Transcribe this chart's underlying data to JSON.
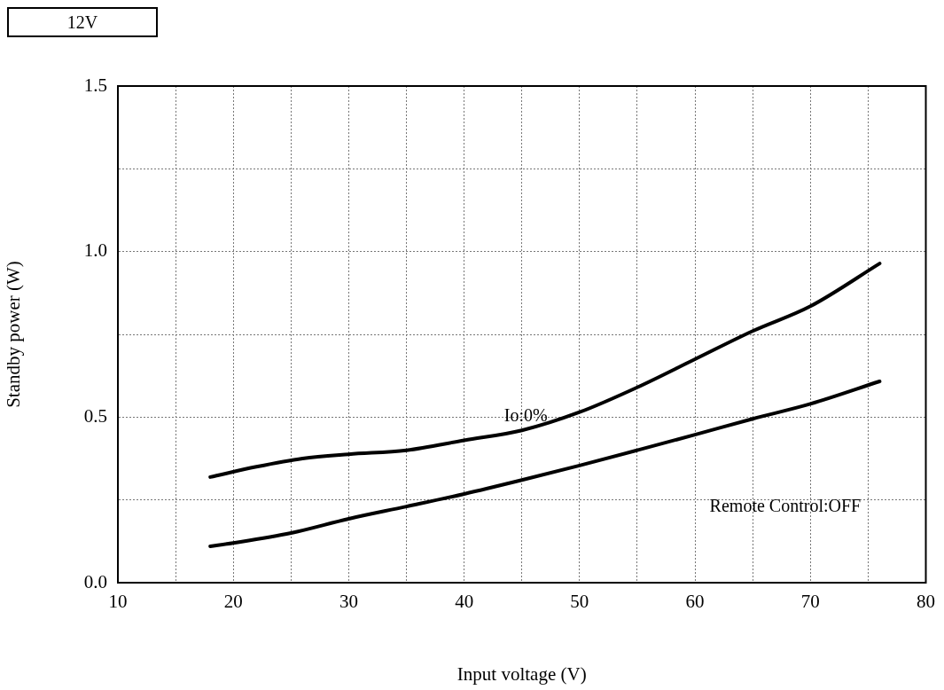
{
  "chart_data": {
    "type": "line",
    "title": "12V",
    "xlabel": "Input voltage (V)",
    "ylabel": "Standby power (W)",
    "xlim": [
      10,
      80
    ],
    "xticks": [
      10,
      {
        "value": 15,
        "label": null
      },
      20,
      {
        "value": 25,
        "label": null
      },
      30,
      {
        "value": 35,
        "label": null
      },
      40,
      {
        "value": 45,
        "label": null
      },
      50,
      {
        "value": 55,
        "label": null
      },
      60,
      {
        "value": 65,
        "label": null
      },
      70,
      {
        "value": 75,
        "label": null
      },
      80
    ],
    "ylim": [
      0,
      1.5
    ],
    "yticks": [
      {
        "value": 0,
        "label": "0.0"
      },
      {
        "value": 0.25,
        "label": null
      },
      0.5,
      {
        "value": 0.75,
        "label": null
      },
      {
        "value": 1,
        "label": "1.0"
      },
      {
        "value": 1.25,
        "label": null
      },
      1.5
    ],
    "grid": true,
    "legend": false,
    "marker": "none",
    "line_style": "solid",
    "series": [
      {
        "color": "#000000",
        "x": [
          18,
          22,
          26,
          30,
          35,
          40,
          45,
          50,
          55,
          60,
          65,
          70,
          76
        ],
        "values": [
          0.319,
          0.35,
          0.375,
          0.388,
          0.4,
          0.43,
          0.46,
          0.515,
          0.59,
          0.675,
          0.76,
          0.835,
          0.964
        ]
      },
      {
        "color": "#000000",
        "x": [
          18,
          20,
          25,
          30,
          35,
          40,
          45,
          50,
          55,
          60,
          65,
          70,
          76
        ],
        "values": [
          0.11,
          0.12,
          0.15,
          0.193,
          0.23,
          0.268,
          0.31,
          0.354,
          0.4,
          0.447,
          0.495,
          0.54,
          0.608
        ]
      }
    ],
    "annotations": [
      "Io:0%",
      "Remote Control:OFF"
    ]
  }
}
